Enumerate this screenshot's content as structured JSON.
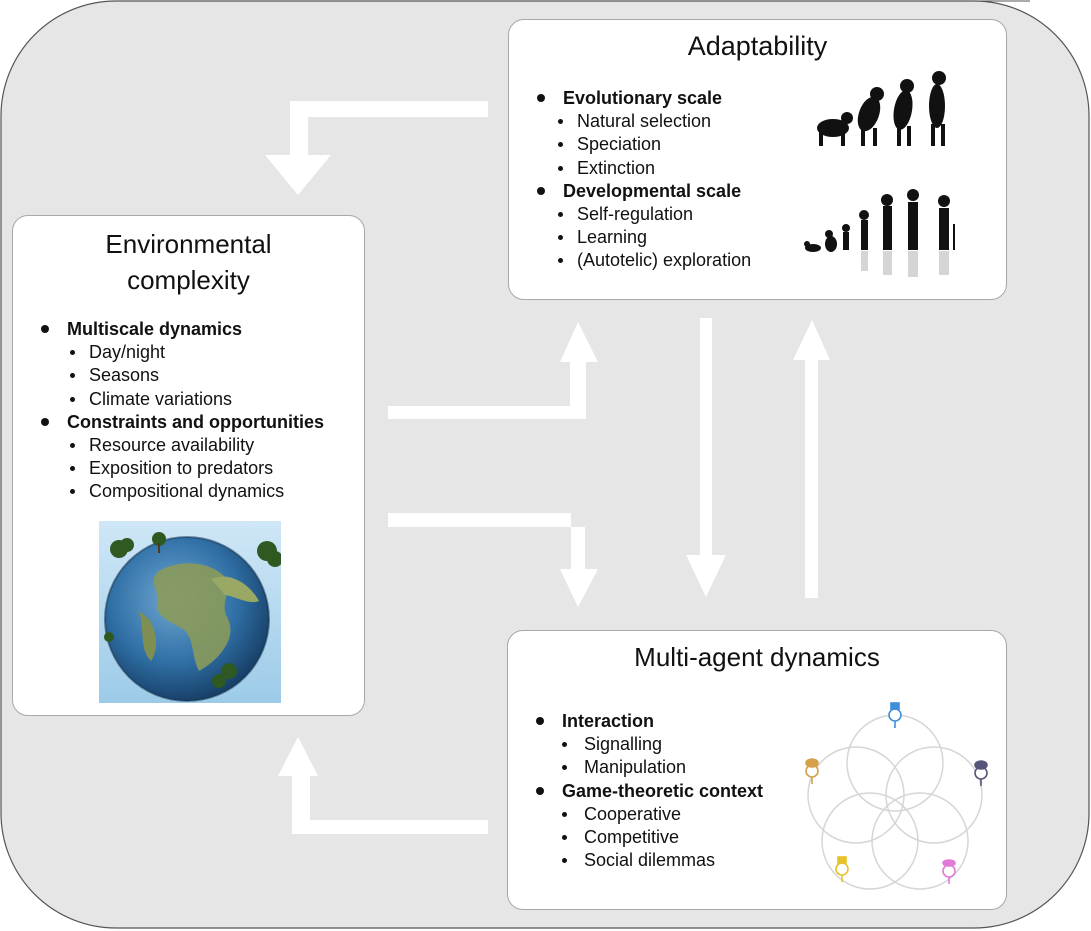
{
  "panels": {
    "environmental": {
      "title_line1": "Environmental",
      "title_line2": "complexity",
      "sections": [
        {
          "label": "Multiscale dynamics",
          "items": [
            "Day/night",
            "Seasons",
            "Climate variations"
          ]
        },
        {
          "label": "Constraints and opportunities",
          "items": [
            "Resource availability",
            "Exposition to predators",
            "Compositional dynamics"
          ]
        }
      ],
      "image": "earth-globe-with-trees"
    },
    "adaptability": {
      "title": "Adaptability",
      "sections": [
        {
          "label": "Evolutionary scale",
          "items": [
            "Natural selection",
            "Speciation",
            "Extinction"
          ]
        },
        {
          "label": "Developmental scale",
          "items": [
            "Self-regulation",
            "Learning",
            "(Autotelic) exploration"
          ]
        }
      ],
      "images": [
        "evolution-silhouettes",
        "human-development-silhouettes"
      ]
    },
    "multi_agent": {
      "title": "Multi-agent dynamics",
      "sections": [
        {
          "label": "Interaction",
          "items": [
            "Signalling",
            "Manipulation"
          ]
        },
        {
          "label": "Game-theoretic context",
          "items": [
            "Cooperative",
            "Competitive",
            "Social dilemmas"
          ]
        }
      ],
      "image": "agents-interaction-circles",
      "agent_colors": [
        "#3f8fd8",
        "#55557a",
        "#e07ad6",
        "#e6c22a",
        "#d4a04a"
      ]
    }
  },
  "colors": {
    "background": "#e6e6e6",
    "arrows": "#ffffff",
    "panel_border": "#a8a8a8"
  }
}
